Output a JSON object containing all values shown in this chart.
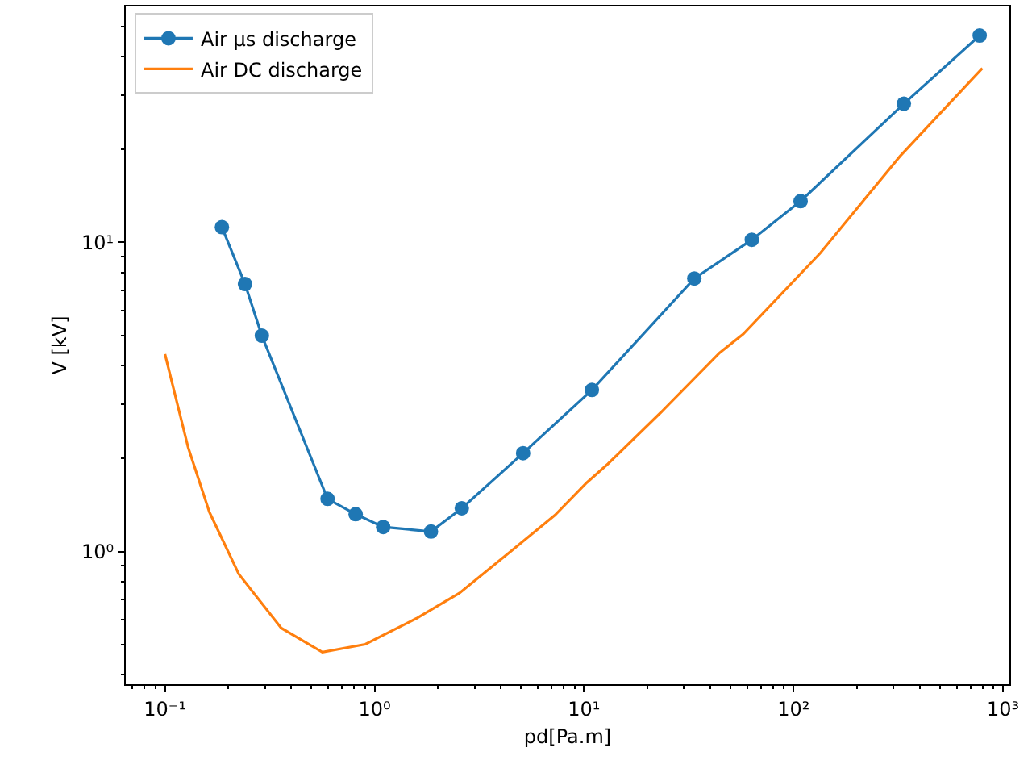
{
  "chart_data": {
    "type": "line",
    "xlabel": "pd[Pa.m]",
    "ylabel": "V [kV]",
    "log": "xy",
    "legend": "top left",
    "xlim": [
      0.065,
      1072
    ],
    "ylim": [
      0.372,
      58
    ],
    "xticks": [
      {
        "value": 0.1,
        "label": "10⁻¹"
      },
      {
        "value": 1,
        "label": "10⁰"
      },
      {
        "value": 10,
        "label": "10¹"
      },
      {
        "value": 100,
        "label": "10²"
      },
      {
        "value": 1000,
        "label": "10³"
      }
    ],
    "yticks": [
      {
        "value": 1,
        "label": "10⁰"
      },
      {
        "value": 10,
        "label": "10¹"
      }
    ],
    "series": [
      {
        "name": "Air μs discharge",
        "color": "#1f77b4",
        "marker": "circle",
        "x": [
          0.187,
          0.241,
          0.29,
          0.597,
          0.813,
          1.1,
          1.86,
          2.61,
          5.12,
          10.9,
          33.6,
          63.2,
          108,
          336,
          773
        ],
        "values": [
          11.2,
          7.33,
          4.99,
          1.48,
          1.32,
          1.2,
          1.16,
          1.38,
          2.08,
          3.33,
          7.64,
          10.2,
          13.6,
          28.1,
          46.7
        ]
      },
      {
        "name": "Air DC discharge",
        "color": "#ff7f0e",
        "marker": "none",
        "x": [
          0.1,
          0.129,
          0.163,
          0.225,
          0.359,
          0.564,
          0.904,
          1.59,
          2.54,
          4.55,
          7.26,
          10.3,
          13,
          23.3,
          44.3,
          57.5,
          134,
          322,
          796
        ],
        "values": [
          4.35,
          2.17,
          1.34,
          0.845,
          0.565,
          0.472,
          0.501,
          0.608,
          0.733,
          1.01,
          1.31,
          1.67,
          1.92,
          2.82,
          4.39,
          5.05,
          9.23,
          19.0,
          36.6
        ]
      }
    ]
  }
}
